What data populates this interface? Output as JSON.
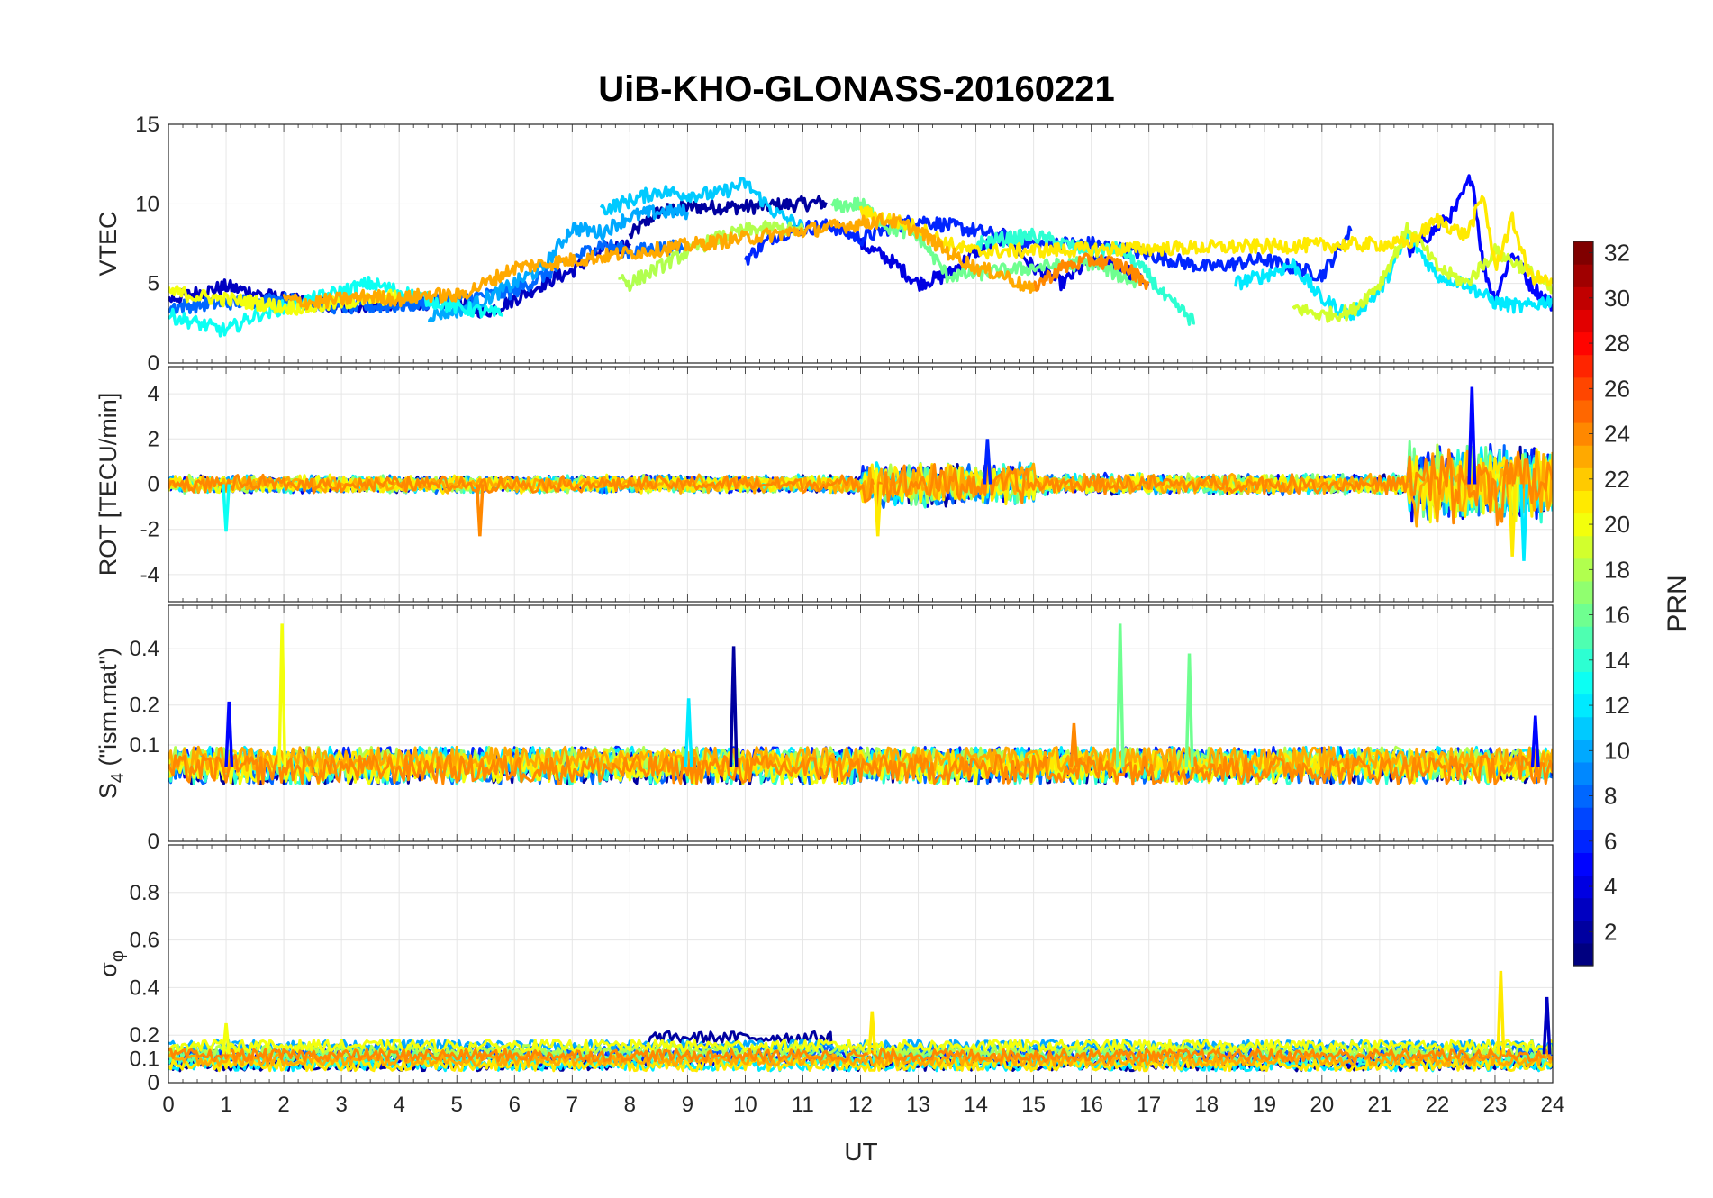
{
  "title": "UiB-KHO-GLONASS-20160221",
  "xlabel": "UT",
  "x_ticks": [
    "0",
    "1",
    "2",
    "3",
    "4",
    "5",
    "6",
    "7",
    "8",
    "9",
    "10",
    "11",
    "12",
    "13",
    "14",
    "15",
    "16",
    "17",
    "18",
    "19",
    "20",
    "21",
    "22",
    "23",
    "24"
  ],
  "colorbar": {
    "label": "PRN",
    "range": [
      1,
      32
    ],
    "colormap": "jet",
    "ticks": [
      "2",
      "4",
      "6",
      "8",
      "10",
      "12",
      "14",
      "16",
      "18",
      "20",
      "22",
      "24",
      "26",
      "28",
      "30",
      "32"
    ]
  },
  "panels": [
    {
      "ylabel": "VTEC",
      "ylim": [
        0,
        15
      ],
      "yticks": [
        0,
        5,
        10,
        15
      ],
      "ytick_labels": [
        "0",
        "5",
        "10",
        "15"
      ]
    },
    {
      "ylabel": "ROT [TECU/min]",
      "ylim": [
        -5.2,
        5.2
      ],
      "yticks": [
        -4,
        -2,
        0,
        2,
        4
      ],
      "ytick_labels": [
        "-4",
        "-2",
        "0",
        "2",
        "4"
      ]
    },
    {
      "ylabel_main": "S",
      "ylabel_sub": "4",
      "ylabel_rest": " (\"ism.mat\")",
      "ylim": [
        0,
        0.6
      ],
      "scale": "sqrt",
      "yticks": [
        0,
        0.1,
        0.2,
        0.4
      ],
      "ytick_labels": [
        "0",
        "0.1",
        "0.2",
        "0.4"
      ]
    },
    {
      "ylabel_main": "σ",
      "ylabel_sub": "φ",
      "ylim": [
        0,
        1
      ],
      "yticks": [
        0,
        0.1,
        0.2,
        0.4,
        0.6,
        0.8
      ],
      "ytick_labels": [
        "0",
        "0.1",
        "0.2",
        "0.4",
        "0.6",
        "0.8"
      ]
    }
  ],
  "chart_data": [
    {
      "type": "line",
      "title": "UiB-KHO-GLONASS-20160221",
      "ylabel": "VTEC",
      "xlabel": "UT",
      "xlim": [
        0,
        24
      ],
      "ylim": [
        0,
        15
      ],
      "series": [
        {
          "prn": 2,
          "x": [
            8.0,
            8.5,
            9.0,
            9.5,
            10.0,
            10.5,
            11.0,
            11.4
          ],
          "y": [
            8.0,
            9.5,
            9.8,
            9.8,
            9.8,
            9.9,
            10.0,
            10.1
          ]
        },
        {
          "prn": 3,
          "x": [
            0.0,
            1.0,
            2.0,
            3.0,
            4.0,
            5.0,
            5.5,
            6.0,
            6.5,
            7.0,
            7.5,
            8.0
          ],
          "y": [
            4.0,
            4.8,
            4.0,
            3.5,
            3.8,
            3.8,
            3.2,
            4.0,
            5.0,
            5.8,
            7.0,
            7.5
          ]
        },
        {
          "prn": 4,
          "x": [
            12.0,
            12.5,
            13.0,
            13.5,
            14.0,
            14.5,
            15.0,
            15.5,
            16.0,
            16.5,
            17.0
          ],
          "y": [
            7.5,
            6.5,
            5.0,
            5.5,
            7.0,
            8.0,
            6.0,
            5.0,
            6.5,
            6.0,
            5.0
          ]
        },
        {
          "prn": 5,
          "x": [
            21.5,
            22.0,
            22.3,
            22.6,
            22.8,
            23.0,
            23.3,
            23.6,
            24.0
          ],
          "y": [
            7.0,
            8.5,
            9.5,
            11.8,
            6.0,
            4.0,
            7.0,
            5.0,
            3.6
          ]
        },
        {
          "prn": 6,
          "x": [
            10.0,
            10.5,
            11.0,
            11.5,
            12.0,
            12.5,
            13.0,
            14.0,
            15.0,
            16.0,
            17.0,
            18.0,
            19.0,
            20.0,
            20.5
          ],
          "y": [
            6.5,
            8.0,
            8.5,
            8.6,
            7.8,
            8.5,
            9.0,
            8.3,
            7.5,
            7.5,
            6.8,
            6.0,
            6.5,
            5.5,
            8.3
          ]
        },
        {
          "prn": 8,
          "x": [
            0.0,
            1.0,
            2.0,
            3.0,
            4.0,
            5.0,
            6.0,
            7.0,
            7.5,
            8.0,
            8.5,
            9.0
          ],
          "y": [
            3.5,
            3.8,
            4.0,
            3.5,
            3.6,
            4.0,
            4.5,
            6.5,
            7.5,
            7.0,
            7.2,
            7.3
          ]
        },
        {
          "prn": 10,
          "x": [
            4.5,
            5.0,
            5.5,
            6.0,
            6.5,
            7.0,
            7.5,
            8.0,
            8.5,
            9.0
          ],
          "y": [
            3.0,
            3.3,
            4.0,
            5.0,
            6.0,
            8.5,
            8.2,
            9.2,
            9.5,
            9.5
          ]
        },
        {
          "prn": 11,
          "x": [
            7.5,
            8.0,
            8.5,
            9.0,
            9.5,
            10.0,
            10.5,
            11.0
          ],
          "y": [
            9.6,
            10.2,
            10.8,
            10.6,
            10.6,
            11.3,
            9.5,
            8.5
          ]
        },
        {
          "prn": 12,
          "x": [
            18.5,
            19.0,
            19.5,
            20.0,
            20.5,
            21.0,
            21.5,
            22.0,
            22.5,
            23.0,
            23.5,
            24.0
          ],
          "y": [
            5.0,
            5.5,
            6.2,
            4.0,
            3.0,
            4.5,
            8.0,
            5.5,
            5.0,
            3.8,
            3.5,
            4.0
          ]
        },
        {
          "prn": 13,
          "x": [
            0.0,
            0.5,
            1.0,
            1.5,
            2.0,
            3.0,
            3.5,
            4.0,
            4.5,
            5.0,
            5.5,
            5.8
          ],
          "y": [
            3.0,
            2.5,
            2.0,
            3.0,
            3.5,
            4.5,
            5.0,
            4.5,
            4.0,
            3.5,
            3.2,
            3.0
          ]
        },
        {
          "prn": 14,
          "x": [
            14.0,
            14.5,
            15.0,
            15.5,
            16.0,
            16.5,
            17.0,
            17.3,
            17.6,
            17.8
          ],
          "y": [
            7.5,
            7.8,
            8.0,
            7.5,
            7.0,
            7.2,
            5.5,
            4.0,
            3.2,
            2.5
          ]
        },
        {
          "prn": 16,
          "x": [
            11.5,
            12.0,
            12.5,
            13.0,
            13.5,
            14.0,
            14.5,
            15.0,
            16.0,
            16.8
          ],
          "y": [
            9.8,
            10.0,
            8.5,
            8.0,
            5.5,
            5.6,
            5.8,
            6.0,
            6.3,
            5.0
          ]
        },
        {
          "prn": 18,
          "x": [
            7.8,
            8.0,
            8.5,
            9.0,
            9.5,
            10.0,
            10.5,
            11.0
          ],
          "y": [
            5.5,
            5.0,
            6.0,
            7.0,
            7.8,
            8.3,
            8.5,
            8.3
          ]
        },
        {
          "prn": 19,
          "x": [
            19.5,
            20.0,
            20.5,
            21.0,
            21.5,
            22.0,
            22.5,
            23.0,
            23.5,
            24.0
          ],
          "y": [
            3.5,
            3.0,
            3.2,
            5.0,
            8.5,
            6.0,
            5.0,
            7.0,
            6.0,
            4.5
          ]
        },
        {
          "prn": 20,
          "x": [
            0.0,
            0.5,
            1.0,
            1.5,
            2.0,
            2.5,
            3.0,
            3.5,
            4.0
          ],
          "y": [
            4.5,
            4.2,
            4.0,
            3.8,
            3.5,
            3.5,
            3.8,
            4.0,
            4.2
          ]
        },
        {
          "prn": 21,
          "x": [
            12.0,
            12.5,
            13.0,
            13.5,
            14.0,
            21.5,
            22.0,
            22.5,
            22.8,
            23.0,
            23.3,
            23.6,
            24.0
          ],
          "y": [
            9.5,
            9.0,
            8.5,
            7.5,
            7.0,
            7.5,
            9.0,
            8.0,
            10.5,
            6.0,
            9.0,
            5.5,
            5.0
          ]
        },
        {
          "prn": 23,
          "x": [
            2.0,
            2.5,
            3.0,
            3.5,
            4.0,
            4.5,
            5.0,
            5.5,
            6.0,
            12.5,
            13.0,
            13.5,
            14.0,
            14.5,
            15.0
          ],
          "y": [
            4.0,
            3.8,
            4.0,
            4.2,
            4.0,
            4.3,
            4.2,
            5.0,
            6.0,
            9.0,
            8.3,
            7.0,
            6.0,
            5.5,
            4.5
          ]
        },
        {
          "prn": 24,
          "x": [
            15.0,
            15.5,
            16.0,
            16.5,
            17.0
          ],
          "y": [
            4.8,
            6.0,
            6.5,
            6.2,
            5.0
          ]
        }
      ]
    },
    {
      "type": "line",
      "ylabel": "ROT [TECU/min]",
      "xlabel": "UT",
      "xlim": [
        0,
        24
      ],
      "ylim": [
        -5.2,
        5.2
      ],
      "note": "dense noise around 0; amplitude roughly ±0.6 most of the day, up to ±2 near 12-15 UT and up to ±4 after 21.5 UT",
      "envelope": [
        {
          "x": [
            0,
            12
          ],
          "amplitude": 0.6
        },
        {
          "x": [
            12,
            15
          ],
          "amplitude": 1.5
        },
        {
          "x": [
            15,
            21.5
          ],
          "amplitude": 0.7
        },
        {
          "x": [
            21.5,
            24
          ],
          "amplitude": 2.8
        }
      ],
      "spikes": [
        {
          "x": 1.0,
          "y": -2.1,
          "prn": 13
        },
        {
          "x": 5.4,
          "y": -2.3,
          "prn": 24
        },
        {
          "x": 12.3,
          "y": -2.3,
          "prn": 21
        },
        {
          "x": 14.2,
          "y": 2.0,
          "prn": 6
        },
        {
          "x": 22.6,
          "y": 4.3,
          "prn": 5
        },
        {
          "x": 23.5,
          "y": -3.4,
          "prn": 12
        },
        {
          "x": 23.3,
          "y": -3.2,
          "prn": 21
        }
      ]
    },
    {
      "type": "line",
      "ylabel": "S4 (\"ism.mat\")",
      "xlabel": "UT",
      "xlim": [
        0,
        24
      ],
      "ylim": [
        0,
        0.6
      ],
      "note": "baseline 0.03-0.09 throughout the day",
      "spikes": [
        {
          "x": 1.05,
          "y": 0.21,
          "prn": 5
        },
        {
          "x": 1.97,
          "y": 0.51,
          "prn": 20
        },
        {
          "x": 9.02,
          "y": 0.22,
          "prn": 12
        },
        {
          "x": 9.8,
          "y": 0.41,
          "prn": 2
        },
        {
          "x": 16.5,
          "y": 0.51,
          "prn": 16
        },
        {
          "x": 17.7,
          "y": 0.38,
          "prn": 16
        },
        {
          "x": 15.7,
          "y": 0.15,
          "prn": 24
        },
        {
          "x": 23.7,
          "y": 0.17,
          "prn": 5
        }
      ]
    },
    {
      "type": "line",
      "ylabel": "σφ",
      "xlabel": "UT",
      "xlim": [
        0,
        24
      ],
      "ylim": [
        0,
        1
      ],
      "note": "baseline 0.07-0.2; dark blue elevated 0.15-0.25 between 8.3 and 11.5 UT",
      "spikes": [
        {
          "x": 1.0,
          "y": 0.25,
          "prn": 20
        },
        {
          "x": 12.2,
          "y": 0.3,
          "prn": 21
        },
        {
          "x": 23.1,
          "y": 0.47,
          "prn": 21
        },
        {
          "x": 23.9,
          "y": 0.36,
          "prn": 3
        }
      ]
    }
  ]
}
